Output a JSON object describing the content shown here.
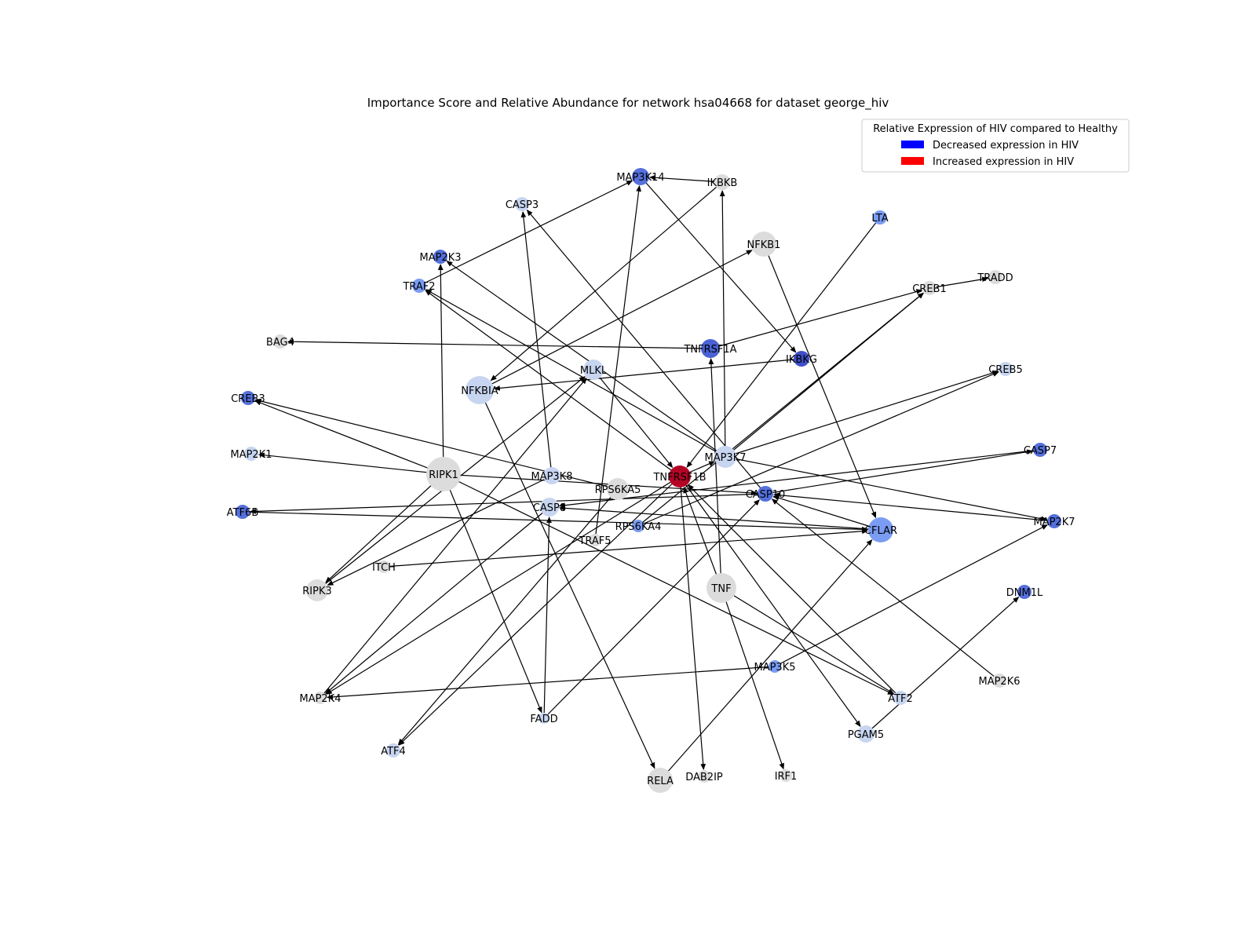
{
  "title": "Importance Score and Relative Abundance for network hsa04668 for dataset george_hiv",
  "legend": {
    "title": "Relative Expression of HIV compared to Healthy",
    "items": [
      {
        "label": "Decreased expression in HIV",
        "color": "#0000ff"
      },
      {
        "label": "Increased expression in HIV",
        "color": "#ff0000"
      }
    ]
  },
  "nodes": [
    {
      "id": "MAP3K14",
      "color": "#5570dd",
      "size": 11
    },
    {
      "id": "IKBKB",
      "color": "#dcdcdc",
      "size": 10
    },
    {
      "id": "CASP3",
      "color": "#c7d5f0",
      "size": 9
    },
    {
      "id": "LTA",
      "color": "#7b9cf3",
      "size": 9
    },
    {
      "id": "NFKB1",
      "color": "#dcdcdc",
      "size": 16
    },
    {
      "id": "MAP2K3",
      "color": "#5570dd",
      "size": 9
    },
    {
      "id": "TRAF2",
      "color": "#7b9cf3",
      "size": 9
    },
    {
      "id": "CREB1",
      "color": "#dcdcdc",
      "size": 9
    },
    {
      "id": "TRADD",
      "color": "#dcdcdc",
      "size": 9
    },
    {
      "id": "BAG4",
      "color": "#dcdcdc",
      "size": 9
    },
    {
      "id": "TNFRSF1A",
      "color": "#4a62d3",
      "size": 12
    },
    {
      "id": "IKBKG",
      "color": "#3f4fc8",
      "size": 10
    },
    {
      "id": "MLKL",
      "color": "#c7d5f0",
      "size": 13
    },
    {
      "id": "NFKBIA",
      "color": "#c7d5f0",
      "size": 18
    },
    {
      "id": "CREB5",
      "color": "#c7d5f0",
      "size": 9
    },
    {
      "id": "CREB3",
      "color": "#5570dd",
      "size": 9
    },
    {
      "id": "MAP2K1",
      "color": "#c7d5f0",
      "size": 9
    },
    {
      "id": "RIPK1",
      "color": "#dcdcdc",
      "size": 22
    },
    {
      "id": "MAP3K8",
      "color": "#c7d5f0",
      "size": 11
    },
    {
      "id": "RPS6KA5",
      "color": "#dcdcdc",
      "size": 14
    },
    {
      "id": "TNFRSF1B",
      "color": "#b40426",
      "size": 14
    },
    {
      "id": "MAP3K7",
      "color": "#c7d5f0",
      "size": 14
    },
    {
      "id": "CASP7",
      "color": "#5570dd",
      "size": 9
    },
    {
      "id": "CASP10",
      "color": "#5570dd",
      "size": 10
    },
    {
      "id": "ATF6B",
      "color": "#5570dd",
      "size": 9
    },
    {
      "id": "CASP8",
      "color": "#c7d5f0",
      "size": 12
    },
    {
      "id": "RPS6KA4",
      "color": "#7b9cf3",
      "size": 8
    },
    {
      "id": "TRAF5",
      "color": "#dcdcdc",
      "size": 8
    },
    {
      "id": "CFLAR",
      "color": "#7b9cf3",
      "size": 16
    },
    {
      "id": "MAP2K7",
      "color": "#5570dd",
      "size": 9
    },
    {
      "id": "ITCH",
      "color": "#dcdcdc",
      "size": 8
    },
    {
      "id": "RIPK3",
      "color": "#dcdcdc",
      "size": 14
    },
    {
      "id": "TNF",
      "color": "#dcdcdc",
      "size": 19
    },
    {
      "id": "DNM1L",
      "color": "#5570dd",
      "size": 9
    },
    {
      "id": "MAP3K5",
      "color": "#7b9cf3",
      "size": 8
    },
    {
      "id": "MAP2K4",
      "color": "#dcdcdc",
      "size": 8
    },
    {
      "id": "ATF2",
      "color": "#c7d5f0",
      "size": 9
    },
    {
      "id": "MAP2K6",
      "color": "#dcdcdc",
      "size": 9
    },
    {
      "id": "FADD",
      "color": "#c7d5f0",
      "size": 7
    },
    {
      "id": "PGAM5",
      "color": "#c7d5f0",
      "size": 11
    },
    {
      "id": "ATF4",
      "color": "#c7d5f0",
      "size": 9
    },
    {
      "id": "RELA",
      "color": "#dcdcdc",
      "size": 16
    },
    {
      "id": "DAB2IP",
      "color": "#dcdcdc",
      "size": 8
    },
    {
      "id": "IRF1",
      "color": "#dcdcdc",
      "size": 8
    }
  ],
  "edges": [
    [
      "IKBKB",
      "MAP3K14"
    ],
    [
      "TRAF2",
      "MAP3K14"
    ],
    [
      "TRAF5",
      "MAP3K14"
    ],
    [
      "MAP3K14",
      "IKBKG"
    ],
    [
      "IKBKB",
      "NFKBIA"
    ],
    [
      "MAP3K7",
      "IKBKB"
    ],
    [
      "MAP3K8",
      "CASP3"
    ],
    [
      "CASP10",
      "CASP3"
    ],
    [
      "LTA",
      "TNFRSF1B"
    ],
    [
      "NFKBIA",
      "NFKB1"
    ],
    [
      "NFKB1",
      "CFLAR"
    ],
    [
      "RIPK1",
      "MAP2K3"
    ],
    [
      "MAP3K7",
      "MAP2K3"
    ],
    [
      "TNFRSF1B",
      "TRAF2"
    ],
    [
      "MAP3K7",
      "TRAF2"
    ],
    [
      "TNFRSF1A",
      "BAG4"
    ],
    [
      "TNFRSF1A",
      "CREB1"
    ],
    [
      "CREB1",
      "TRADD"
    ],
    [
      "MAP3K7",
      "CREB1"
    ],
    [
      "RPS6KA4",
      "CREB1"
    ],
    [
      "TNF",
      "TNFRSF1A"
    ],
    [
      "IKBKG",
      "NFKBIA"
    ],
    [
      "MAP2K4",
      "MLKL"
    ],
    [
      "MLKL",
      "TNFRSF1B"
    ],
    [
      "NFKBIA",
      "RELA"
    ],
    [
      "MAP3K7",
      "CREB5"
    ],
    [
      "RPS6KA4",
      "CREB5"
    ],
    [
      "RIPK1",
      "CREB3"
    ],
    [
      "RPS6KA5",
      "CREB3"
    ],
    [
      "RIPK1",
      "MAP2K1"
    ],
    [
      "RIPK1",
      "RIPK3"
    ],
    [
      "RIPK1",
      "CASP10"
    ],
    [
      "RIPK1",
      "FADD"
    ],
    [
      "RIPK1",
      "ATF2"
    ],
    [
      "MAP3K8",
      "RIPK3"
    ],
    [
      "RIPK3",
      "MLKL"
    ],
    [
      "TNF",
      "TNFRSF1B"
    ],
    [
      "TNFRSF1B",
      "MAP3K7"
    ],
    [
      "TNFRSF1B",
      "DAB2IP"
    ],
    [
      "TNFRSF1B",
      "PGAM5"
    ],
    [
      "TNFRSF1B",
      "MAP2K4"
    ],
    [
      "TNFRSF1B",
      "ATF4"
    ],
    [
      "MAP3K7",
      "MAP2K7"
    ],
    [
      "CASP10",
      "CASP7"
    ],
    [
      "CASP10",
      "ATF6B"
    ],
    [
      "CFLAR",
      "CASP10"
    ],
    [
      "CFLAR",
      "CASP8"
    ],
    [
      "MAP2K7",
      "CASP10"
    ],
    [
      "CASP7",
      "CASP8"
    ],
    [
      "ATF6B",
      "CFLAR"
    ],
    [
      "ITCH",
      "CFLAR"
    ],
    [
      "CASP8",
      "MAP2K4"
    ],
    [
      "FADD",
      "CASP8"
    ],
    [
      "FADD",
      "CASP10"
    ],
    [
      "RELA",
      "CFLAR"
    ],
    [
      "TNF",
      "IRF1"
    ],
    [
      "TNF",
      "ATF2"
    ],
    [
      "MAP3K5",
      "MAP2K4"
    ],
    [
      "MAP3K5",
      "MAP2K7"
    ],
    [
      "MAP2K6",
      "CASP10"
    ],
    [
      "PGAM5",
      "DNM1L"
    ],
    [
      "ATF2",
      "TNFRSF1B"
    ],
    [
      "RPS6KA5",
      "ATF4"
    ]
  ]
}
